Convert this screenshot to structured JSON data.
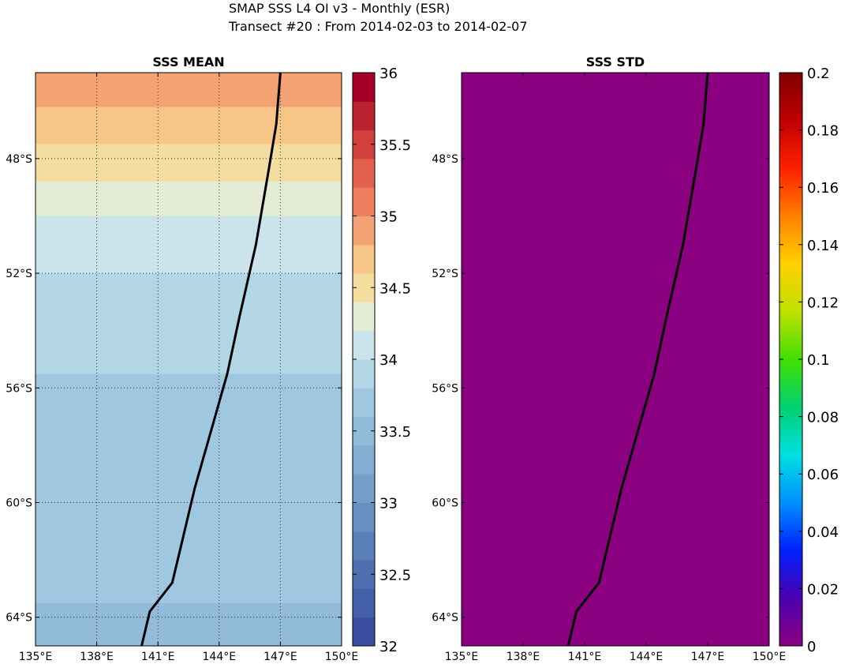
{
  "figure": {
    "title_line1": "SMAP SSS L4 OI v3 - Monthly (ESR)",
    "title_line2": "Transect #20 : From 2014-02-03 to 2014-02-07"
  },
  "chart_data": [
    {
      "type": "heatmap",
      "title": "SSS MEAN",
      "xlim": [
        135,
        150
      ],
      "ylim": [
        -65,
        -45
      ],
      "x_ticks": [
        135,
        138,
        141,
        144,
        147,
        150
      ],
      "x_tick_labels": [
        "135°E",
        "138°E",
        "141°E",
        "144°E",
        "147°E",
        "150°E"
      ],
      "y_ticks": [
        -48,
        -52,
        -56,
        -60,
        -64
      ],
      "y_tick_labels": [
        "48°S",
        "52°S",
        "56°S",
        "60°S",
        "64°S"
      ],
      "grid": true,
      "colorbar": {
        "min": 32,
        "max": 36,
        "ticks": [
          32,
          32.5,
          33,
          33.5,
          34,
          34.5,
          35,
          35.5,
          36
        ],
        "tick_labels": [
          "32",
          "32.5",
          "33",
          "33.5",
          "34",
          "34.5",
          "35",
          "35.5",
          "36"
        ],
        "colormap": "RdYlBu_r (discrete, 20 levels)"
      },
      "field_bands": [
        {
          "lat_from": -45,
          "lat_to": -46.2,
          "value": 34.9
        },
        {
          "lat_from": -46.2,
          "lat_to": -47.5,
          "value": 34.65
        },
        {
          "lat_from": -47.5,
          "lat_to": -48.8,
          "value": 34.45
        },
        {
          "lat_from": -48.8,
          "lat_to": -50.0,
          "value": 34.25
        },
        {
          "lat_from": -50.0,
          "lat_to": -52.0,
          "value": 34.05
        },
        {
          "lat_from": -52.0,
          "lat_to": -55.5,
          "value": 33.9
        },
        {
          "lat_from": -55.5,
          "lat_to": -63.5,
          "value": 33.7
        },
        {
          "lat_from": -63.5,
          "lat_to": -65.0,
          "value": 33.55
        }
      ],
      "transect": {
        "lon": [
          140.2,
          140.6,
          141.7,
          142.1,
          142.8,
          143.6,
          144.4,
          145.0,
          145.8,
          146.4,
          146.8,
          147.0
        ],
        "lat": [
          -65.0,
          -63.8,
          -62.8,
          -61.6,
          -59.5,
          -57.5,
          -55.5,
          -53.5,
          -51.0,
          -48.5,
          -46.8,
          -45.0
        ]
      }
    },
    {
      "type": "heatmap",
      "title": "SSS STD",
      "xlim": [
        135,
        150
      ],
      "ylim": [
        -65,
        -45
      ],
      "x_ticks": [
        135,
        138,
        141,
        144,
        147,
        150
      ],
      "x_tick_labels": [
        "135°E",
        "138°E",
        "141°E",
        "144°E",
        "147°E",
        "150°E"
      ],
      "y_ticks": [
        -48,
        -52,
        -56,
        -60,
        -64
      ],
      "y_tick_labels": [
        "48°S",
        "52°S",
        "56°S",
        "60°S",
        "64°S"
      ],
      "grid": false,
      "field_value": 0,
      "field_color": "#8b0080",
      "colorbar": {
        "min": 0,
        "max": 0.2,
        "ticks": [
          0,
          0.02,
          0.04,
          0.06,
          0.08,
          0.1,
          0.12,
          0.14,
          0.16,
          0.18,
          0.2
        ],
        "tick_labels": [
          "0",
          "0.02",
          "0.04",
          "0.06",
          "0.08",
          "0.1",
          "0.12",
          "0.14",
          "0.16",
          "0.18",
          "0.2"
        ],
        "colormap": "jet-like (purple to dark red)"
      },
      "transect": {
        "lon": [
          140.2,
          140.6,
          141.7,
          142.1,
          142.8,
          143.6,
          144.4,
          145.0,
          145.8,
          146.4,
          146.8,
          147.0
        ],
        "lat": [
          -65.0,
          -63.8,
          -62.8,
          -61.6,
          -59.5,
          -57.5,
          -55.5,
          -53.5,
          -51.0,
          -48.5,
          -46.8,
          -45.0
        ]
      }
    }
  ]
}
